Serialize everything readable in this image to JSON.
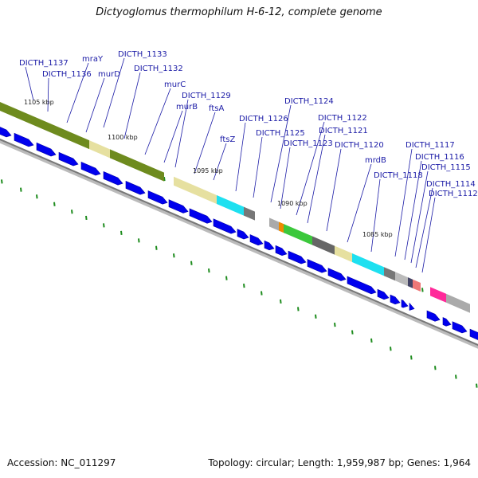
{
  "header": {
    "title": "Dictyoglomus thermophilum H-6-12, complete genome"
  },
  "footer": {
    "accession": "Accession: NC_011297",
    "summary": "Topology: circular; Length: 1,959,987 bp; Genes: 1,964"
  },
  "colors": {
    "gene_arrow": "#0000ee",
    "label": "#1a1aa6",
    "backbone": "#888888",
    "tick": "#1e8c1e"
  },
  "gene_labels": [
    "DICTH_1137",
    "DICTH_1136",
    "mraY",
    "murD",
    "DICTH_1133",
    "DICTH_1132",
    "murC",
    "murB",
    "DICTH_1129",
    "ftsA",
    "ftsZ",
    "DICTH_1126",
    "DICTH_1125",
    "DICTH_1124",
    "DICTH_1123",
    "DICTH_1122",
    "DICTH_1121",
    "DICTH_1120",
    "mrdB",
    "DICTH_1118",
    "DICTH_1117",
    "DICTH_1116",
    "DICTH_1115",
    "DICTH_1114",
    "DICTH_1112"
  ],
  "kbp_labels": [
    "1105 kbp",
    "1100 kbp",
    "1095 kbp",
    "1090 kbp",
    "1085 kbp"
  ]
}
